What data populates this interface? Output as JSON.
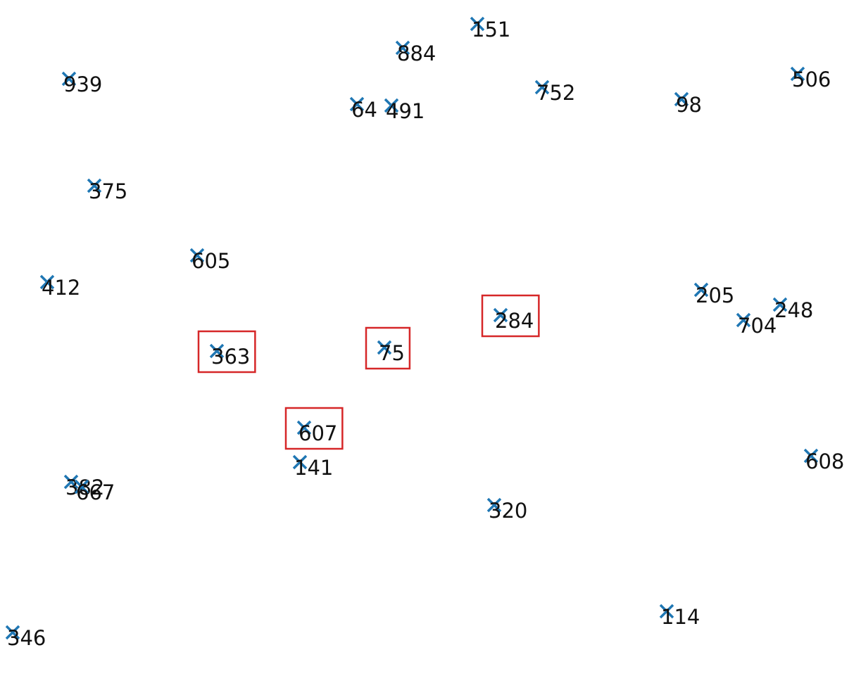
{
  "chart_data": {
    "type": "scatter",
    "marker": "x",
    "marker_color": "#1f77b4",
    "highlight_color": "#d62728",
    "grid": false,
    "axes_visible": false,
    "xlim": [
      0,
      1223
    ],
    "ylim": [
      0,
      961
    ],
    "points": [
      {
        "label": "151",
        "x": 678,
        "y": 34,
        "highlighted": false
      },
      {
        "label": "884",
        "x": 572,
        "y": 68,
        "highlighted": false
      },
      {
        "label": "939",
        "x": 98,
        "y": 112,
        "highlighted": false
      },
      {
        "label": "506",
        "x": 1133,
        "y": 105,
        "highlighted": false
      },
      {
        "label": "752",
        "x": 770,
        "y": 124,
        "highlighted": false
      },
      {
        "label": "98",
        "x": 968,
        "y": 141,
        "highlighted": false
      },
      {
        "label": "64",
        "x": 507,
        "y": 148,
        "highlighted": false
      },
      {
        "label": "491",
        "x": 556,
        "y": 150,
        "highlighted": false
      },
      {
        "label": "375",
        "x": 134,
        "y": 264,
        "highlighted": false
      },
      {
        "label": "605",
        "x": 280,
        "y": 363,
        "highlighted": false
      },
      {
        "label": "412",
        "x": 67,
        "y": 401,
        "highlighted": false
      },
      {
        "label": "205",
        "x": 996,
        "y": 412,
        "highlighted": false
      },
      {
        "label": "248",
        "x": 1108,
        "y": 433,
        "highlighted": false
      },
      {
        "label": "704",
        "x": 1056,
        "y": 455,
        "highlighted": false
      },
      {
        "label": "284",
        "x": 711,
        "y": 448,
        "highlighted": true
      },
      {
        "label": "75",
        "x": 546,
        "y": 494,
        "highlighted": true
      },
      {
        "label": "363",
        "x": 308,
        "y": 499,
        "highlighted": true
      },
      {
        "label": "607",
        "x": 432,
        "y": 608,
        "highlighted": true
      },
      {
        "label": "141",
        "x": 426,
        "y": 657,
        "highlighted": false
      },
      {
        "label": "608",
        "x": 1152,
        "y": 648,
        "highlighted": false
      },
      {
        "label": "382",
        "x": 101,
        "y": 685,
        "highlighted": false
      },
      {
        "label": "667",
        "x": 116,
        "y": 692,
        "highlighted": false
      },
      {
        "label": "320",
        "x": 702,
        "y": 718,
        "highlighted": false
      },
      {
        "label": "114",
        "x": 947,
        "y": 869,
        "highlighted": false
      },
      {
        "label": "346",
        "x": 18,
        "y": 899,
        "highlighted": false
      }
    ]
  }
}
